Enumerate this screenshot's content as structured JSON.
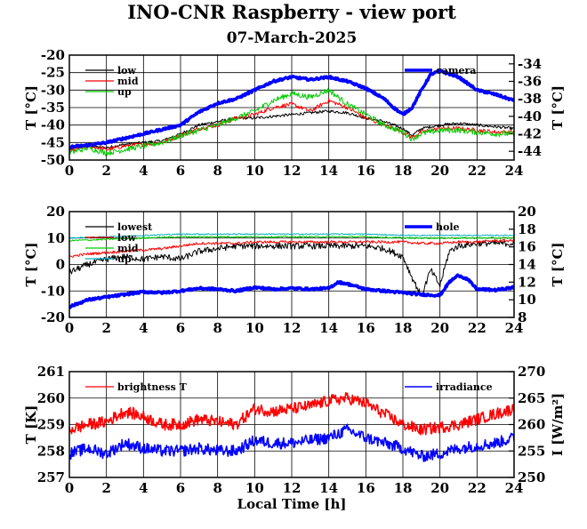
{
  "title": "INO-CNR Raspberry - view port",
  "subtitle": "07-March-2025",
  "xlabel": "Local Time [h]",
  "colors": {
    "black": "#000000",
    "red": "#ff0000",
    "green": "#00cc00",
    "blue": "#0000ff",
    "cyan": "#00b0c0"
  },
  "chart_data": [
    {
      "type": "line",
      "xlim": [
        0,
        24
      ],
      "xticks": [
        "0",
        "2",
        "4",
        "6",
        "8",
        "10",
        "12",
        "14",
        "16",
        "18",
        "20",
        "22",
        "24"
      ],
      "ylabel": "T [°C]",
      "ylim": [
        -50,
        -20
      ],
      "yticks": [
        "-50",
        "-45",
        "-40",
        "-35",
        "-30",
        "-25",
        "-20"
      ],
      "y2label": "T [°C]",
      "y2lim": [
        -45,
        -33
      ],
      "y2ticks": [
        "-44",
        "-42",
        "-40",
        "-38",
        "-36",
        "-34"
      ],
      "legend_left": [
        "low",
        "mid",
        "up"
      ],
      "legend_right": [
        "camera"
      ],
      "series": [
        {
          "name": "low",
          "color": "black",
          "axis": "left",
          "width": 1,
          "noise": 0.4,
          "x": [
            0,
            1,
            2,
            3,
            4,
            5,
            6,
            7,
            8,
            9,
            10,
            11,
            12,
            13,
            14,
            15,
            16,
            17,
            18,
            18.5,
            19,
            20,
            21,
            22,
            23,
            24
          ],
          "y": [
            -47,
            -46,
            -46.5,
            -45.5,
            -45,
            -44.5,
            -42.5,
            -40,
            -39,
            -38,
            -38,
            -37.5,
            -37,
            -36.5,
            -36,
            -36.5,
            -38,
            -39,
            -41,
            -43,
            -41,
            -40,
            -39.5,
            -40,
            -40.5,
            -41
          ]
        },
        {
          "name": "mid",
          "color": "red",
          "axis": "left",
          "width": 1,
          "noise": 0.6,
          "x": [
            0,
            1,
            2,
            3,
            4,
            5,
            6,
            7,
            8,
            9,
            10,
            11,
            12,
            13,
            14,
            15,
            16,
            17,
            18,
            18.5,
            19,
            20,
            21,
            22,
            23,
            24
          ],
          "y": [
            -47.5,
            -46,
            -47,
            -46,
            -45.5,
            -45,
            -43,
            -41,
            -40,
            -38,
            -37,
            -35,
            -34,
            -36,
            -33,
            -35,
            -38,
            -40,
            -42,
            -43.5,
            -42,
            -41,
            -41,
            -41.5,
            -42,
            -42
          ]
        },
        {
          "name": "up",
          "color": "green",
          "axis": "left",
          "width": 1,
          "noise": 0.8,
          "x": [
            0,
            1,
            2,
            3,
            4,
            5,
            6,
            7,
            8,
            9,
            10,
            11,
            12,
            13,
            14,
            15,
            16,
            17,
            18,
            18.5,
            19,
            20,
            21,
            22,
            23,
            24
          ],
          "y": [
            -48,
            -46.5,
            -48,
            -47,
            -46,
            -45,
            -43,
            -41.5,
            -40,
            -38,
            -36,
            -33,
            -31,
            -32,
            -30,
            -34,
            -37,
            -40,
            -42,
            -44,
            -42.5,
            -41.5,
            -41.5,
            -42,
            -42.5,
            -42.5
          ]
        },
        {
          "name": "camera",
          "color": "blue",
          "axis": "right",
          "width": 3.5,
          "noise": 0.12,
          "x": [
            0,
            1,
            2,
            3,
            4,
            5,
            6,
            7,
            8,
            9,
            10,
            11,
            12,
            13,
            14,
            15,
            16,
            17,
            17.5,
            18,
            18.5,
            19,
            19.5,
            20,
            21,
            22,
            23,
            24
          ],
          "y": [
            -43.5,
            -43.3,
            -43,
            -42.5,
            -42,
            -41.5,
            -41,
            -39.5,
            -38.5,
            -38,
            -37,
            -36,
            -35.5,
            -35.8,
            -35.5,
            -36,
            -36.8,
            -38,
            -39,
            -39.8,
            -39,
            -37,
            -35.2,
            -34.8,
            -35.5,
            -37,
            -37.5,
            -38.2
          ]
        }
      ]
    },
    {
      "type": "line",
      "xlim": [
        0,
        24
      ],
      "xticks": [
        "0",
        "2",
        "4",
        "6",
        "8",
        "10",
        "12",
        "14",
        "16",
        "18",
        "20",
        "22",
        "24"
      ],
      "ylabel": "T [°C]",
      "ylim": [
        -20,
        20
      ],
      "yticks": [
        "-20",
        "-10",
        "0",
        "10",
        "20"
      ],
      "y2label": "T [°C]",
      "y2lim": [
        8,
        20
      ],
      "y2ticks": [
        "8",
        "10",
        "12",
        "14",
        "16",
        "18",
        "20"
      ],
      "legend_left": [
        "lowest",
        "low",
        "mid",
        "up"
      ],
      "legend_right": [
        "hole"
      ],
      "series": [
        {
          "name": "lowest",
          "color": "black",
          "axis": "left",
          "width": 1,
          "noise": 1.2,
          "x": [
            0,
            1,
            2,
            3,
            4,
            5,
            6,
            7,
            8,
            9,
            10,
            11,
            12,
            13,
            14,
            15,
            16,
            17,
            18,
            18.5,
            19,
            19.5,
            20,
            20.5,
            21,
            22,
            23,
            24
          ],
          "y": [
            -3,
            0,
            2,
            3,
            2,
            3,
            2,
            5,
            6,
            7,
            7,
            7,
            7,
            7,
            7,
            7,
            7,
            6,
            3,
            -5,
            -12,
            -2,
            -8,
            5,
            7,
            8,
            8,
            8
          ]
        },
        {
          "name": "low",
          "color": "red",
          "axis": "left",
          "width": 1,
          "noise": 0.5,
          "x": [
            0,
            1,
            2,
            3,
            4,
            5,
            6,
            7,
            8,
            9,
            10,
            11,
            12,
            13,
            14,
            15,
            16,
            17,
            18,
            19,
            20,
            21,
            22,
            23,
            24
          ],
          "y": [
            3,
            4,
            4.5,
            5,
            5.5,
            6,
            7,
            8,
            8,
            8,
            8.5,
            8.5,
            8.5,
            8.5,
            8.5,
            8.5,
            8.5,
            8.5,
            8.5,
            8,
            8,
            8.5,
            8.5,
            9,
            9
          ]
        },
        {
          "name": "mid",
          "color": "green",
          "axis": "left",
          "width": 1,
          "noise": 0.3,
          "x": [
            0,
            2,
            4,
            6,
            8,
            10,
            12,
            14,
            16,
            18,
            20,
            22,
            24
          ],
          "y": [
            9,
            9.5,
            10,
            10.5,
            10.5,
            10.5,
            10.5,
            10.5,
            10.5,
            10,
            10,
            10,
            10
          ]
        },
        {
          "name": "up",
          "color": "cyan",
          "axis": "left",
          "width": 1,
          "noise": 0.2,
          "x": [
            0,
            2,
            4,
            6,
            8,
            10,
            12,
            14,
            16,
            18,
            20,
            22,
            24
          ],
          "y": [
            10,
            10.5,
            11,
            11.5,
            11.5,
            11.5,
            11.5,
            11.5,
            11.5,
            11,
            11,
            11,
            11
          ]
        },
        {
          "name": "hole",
          "color": "blue",
          "axis": "right",
          "width": 3.5,
          "noise": 0.12,
          "x": [
            0,
            0.5,
            1,
            2,
            3,
            4,
            5,
            6,
            7,
            8,
            9,
            10,
            11,
            12,
            13,
            14,
            14.5,
            15,
            16,
            17,
            18,
            19,
            20,
            20.5,
            21,
            21.5,
            22,
            23,
            24
          ],
          "y": [
            9.2,
            9.6,
            10,
            10.3,
            10.6,
            10.9,
            10.8,
            11,
            11.3,
            11.2,
            11,
            11.4,
            11.2,
            11.3,
            11.2,
            11.3,
            12,
            11.8,
            11.2,
            11,
            10.8,
            10.6,
            10.5,
            12,
            12.8,
            12.3,
            11.2,
            11.1,
            11.4
          ]
        }
      ]
    },
    {
      "type": "line",
      "xlim": [
        0,
        24
      ],
      "xticks": [
        "0",
        "2",
        "4",
        "6",
        "8",
        "10",
        "12",
        "14",
        "16",
        "18",
        "20",
        "22",
        "24"
      ],
      "ylabel": "T [K]",
      "ylim": [
        257,
        261
      ],
      "yticks": [
        "257",
        "258",
        "259",
        "260",
        "261"
      ],
      "y2label": "I [W/m²]",
      "y2lim": [
        250,
        270
      ],
      "y2ticks": [
        "250",
        "255",
        "260",
        "265",
        "270"
      ],
      "legend_left": [
        "brightness T"
      ],
      "legend_right": [
        "irradiance"
      ],
      "series": [
        {
          "name": "brightness T",
          "color": "red",
          "axis": "left",
          "width": 1.6,
          "noise": 0.22,
          "x": [
            0,
            1,
            2,
            3,
            4,
            5,
            6,
            7,
            8,
            9,
            10,
            11,
            12,
            13,
            14,
            15,
            16,
            17,
            18,
            19,
            20,
            21,
            22,
            23,
            24
          ],
          "y": [
            258.8,
            259,
            259.1,
            259.5,
            259.3,
            259,
            259,
            259.2,
            259.1,
            259,
            259.6,
            259.5,
            259.6,
            259.7,
            259.9,
            260,
            259.8,
            259.4,
            259,
            258.8,
            258.9,
            259,
            259.2,
            259.4,
            259.6
          ]
        },
        {
          "name": "irradiance",
          "color": "blue",
          "axis": "right",
          "width": 1.6,
          "noise": 1.1,
          "x": [
            0,
            1,
            2,
            3,
            4,
            5,
            6,
            7,
            8,
            9,
            10,
            11,
            12,
            13,
            14,
            15,
            16,
            17,
            18,
            19,
            20,
            21,
            22,
            23,
            24
          ],
          "y": [
            254.5,
            255.5,
            254.5,
            256.5,
            255.5,
            255,
            255,
            255.5,
            255,
            255,
            257,
            256.5,
            256.5,
            257,
            257.5,
            259,
            257.5,
            256.5,
            255.5,
            254,
            254.5,
            255.5,
            256,
            256.5,
            257.5
          ]
        }
      ]
    }
  ]
}
